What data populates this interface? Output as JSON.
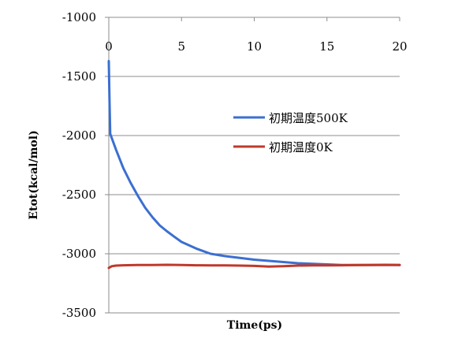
{
  "chart_data": {
    "type": "line",
    "title": "",
    "xlabel": "Time(ps)",
    "ylabel": "Etot(kcal/mol)",
    "xlim": [
      0,
      20
    ],
    "ylim": [
      -3500,
      -1000
    ],
    "y_inverted": true,
    "x_axis_position": "top",
    "xticks": [
      0,
      5,
      10,
      15,
      20
    ],
    "yticks": [
      -1000,
      -1500,
      -2000,
      -2500,
      -3000,
      -3500
    ],
    "xtick_labels": [
      "0",
      "5",
      "10",
      "15",
      "20"
    ],
    "ytick_labels": [
      "-1000",
      "-1500",
      "-2000",
      "-2500",
      "-3000",
      "-3500"
    ],
    "grid": {
      "horizontal": true,
      "vertical": false
    },
    "legend_position": "right",
    "series": [
      {
        "name": "初期温度500K",
        "color": "#3b6fd1",
        "x": [
          0,
          0.05,
          0.1,
          0.5,
          1,
          1.5,
          2,
          2.5,
          3,
          3.5,
          4,
          4.5,
          5,
          6,
          7,
          8,
          9,
          10,
          11,
          12,
          13,
          14,
          15,
          16,
          17,
          18,
          19,
          20
        ],
        "y": [
          -1370,
          -1700,
          -1985,
          -2120,
          -2275,
          -2400,
          -2510,
          -2610,
          -2690,
          -2760,
          -2810,
          -2855,
          -2900,
          -2955,
          -3000,
          -3020,
          -3035,
          -3050,
          -3060,
          -3070,
          -3080,
          -3085,
          -3090,
          -3095,
          -3095,
          -3095,
          -3095,
          -3095
        ]
      },
      {
        "name": "初期温度0K",
        "color": "#c0392b",
        "x": [
          0,
          0.2,
          0.5,
          1,
          2,
          3,
          4,
          5,
          6,
          7,
          8,
          9,
          10,
          11,
          12,
          13,
          14,
          15,
          16,
          17,
          18,
          19,
          20
        ],
        "y": [
          -3120,
          -3105,
          -3100,
          -3097,
          -3095,
          -3095,
          -3093,
          -3095,
          -3097,
          -3098,
          -3098,
          -3100,
          -3103,
          -3108,
          -3105,
          -3100,
          -3098,
          -3098,
          -3097,
          -3096,
          -3095,
          -3093,
          -3095
        ]
      }
    ]
  }
}
